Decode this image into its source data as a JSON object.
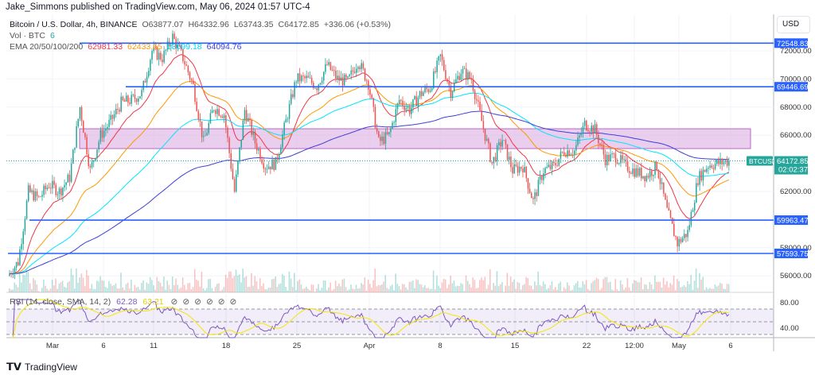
{
  "header": {
    "published": "Jake_Simmons published on TradingView.com, May 06, 2024 01:57 UTC-4"
  },
  "legend": {
    "symbol": "Bitcoin / U.S. Dollar, 4h, BINANCE",
    "open": "O63877.07",
    "high": "H64332.96",
    "low": "L63743.35",
    "close": "C64172.85",
    "change": "+336.06 (+0.53%)",
    "vol_label": "Vol · BTC",
    "vol_value": "6",
    "ema_label": "EMA 20/50/100/200",
    "ema_values": [
      "62981.33",
      "62433.65",
      "63099.18",
      "64094.76"
    ]
  },
  "rsi_legend": {
    "label": "RSI (14, close, SMA, 14, 2)",
    "rsi": "62.28",
    "sma": "63.21"
  },
  "axis": {
    "currency": "USD"
  },
  "ticker": {
    "symbol": "BTCUSD",
    "price": "64172.85",
    "countdown": "02:02:37"
  },
  "footer": {
    "brand": "TradingView"
  },
  "colors": {
    "up": "#26a69a",
    "down": "#ef5350",
    "level": "#2962ff",
    "zone": "#e1bee7",
    "ema20": "#f23645",
    "ema50": "#ff9800",
    "ema100": "#00e5ff",
    "ema200": "#3f3fd9",
    "rsi": "#7e57c2",
    "rsi_sma": "#f5e600"
  },
  "chart_data": {
    "type": "candlestick",
    "timeframe": "4h",
    "ylim": [
      55000,
      74000
    ],
    "price_ticks": [
      "72000.00",
      "70000.00",
      "68000.00",
      "66000.00",
      "62000.00",
      "58000.00",
      "56000.00"
    ],
    "rsi_ticks": [
      "80.00",
      "40.00"
    ],
    "x_ticks": [
      "Mar",
      "6",
      "11",
      "18",
      "25",
      "Apr",
      "8",
      "15",
      "22",
      "12:00",
      "May",
      "6"
    ],
    "daily_closes": [
      56000,
      57000,
      62000,
      61500,
      62500,
      62000,
      63000,
      68000,
      63500,
      66000,
      67000,
      68300,
      68500,
      69000,
      72000,
      71500,
      73000,
      71500,
      69500,
      65500,
      68000,
      67500,
      62000,
      67800,
      65500,
      63800,
      64000,
      67000,
      70000,
      70000,
      69500,
      71000,
      70000,
      69800,
      71300,
      69700,
      65500,
      66000,
      68500,
      67800,
      68900,
      69400,
      71600,
      69100,
      70600,
      70000,
      67000,
      64000,
      65700,
      63500,
      63800,
      61300,
      63500,
      63800,
      64900,
      64900,
      66800,
      66400,
      64300,
      64500,
      63800,
      63400,
      63100,
      63800,
      60600,
      58300,
      59100,
      62900,
      63900,
      64000,
      64172.85
    ],
    "levels": [
      {
        "label": "72548.83",
        "value": 72548.83
      },
      {
        "label": "69446.69",
        "value": 69446.69
      },
      {
        "label": "59963.47",
        "value": 59963.47
      },
      {
        "label": "57593.75",
        "value": 57593.75
      }
    ],
    "zone": {
      "from": 65050,
      "to": 66460
    },
    "last_price": 64172.85
  }
}
